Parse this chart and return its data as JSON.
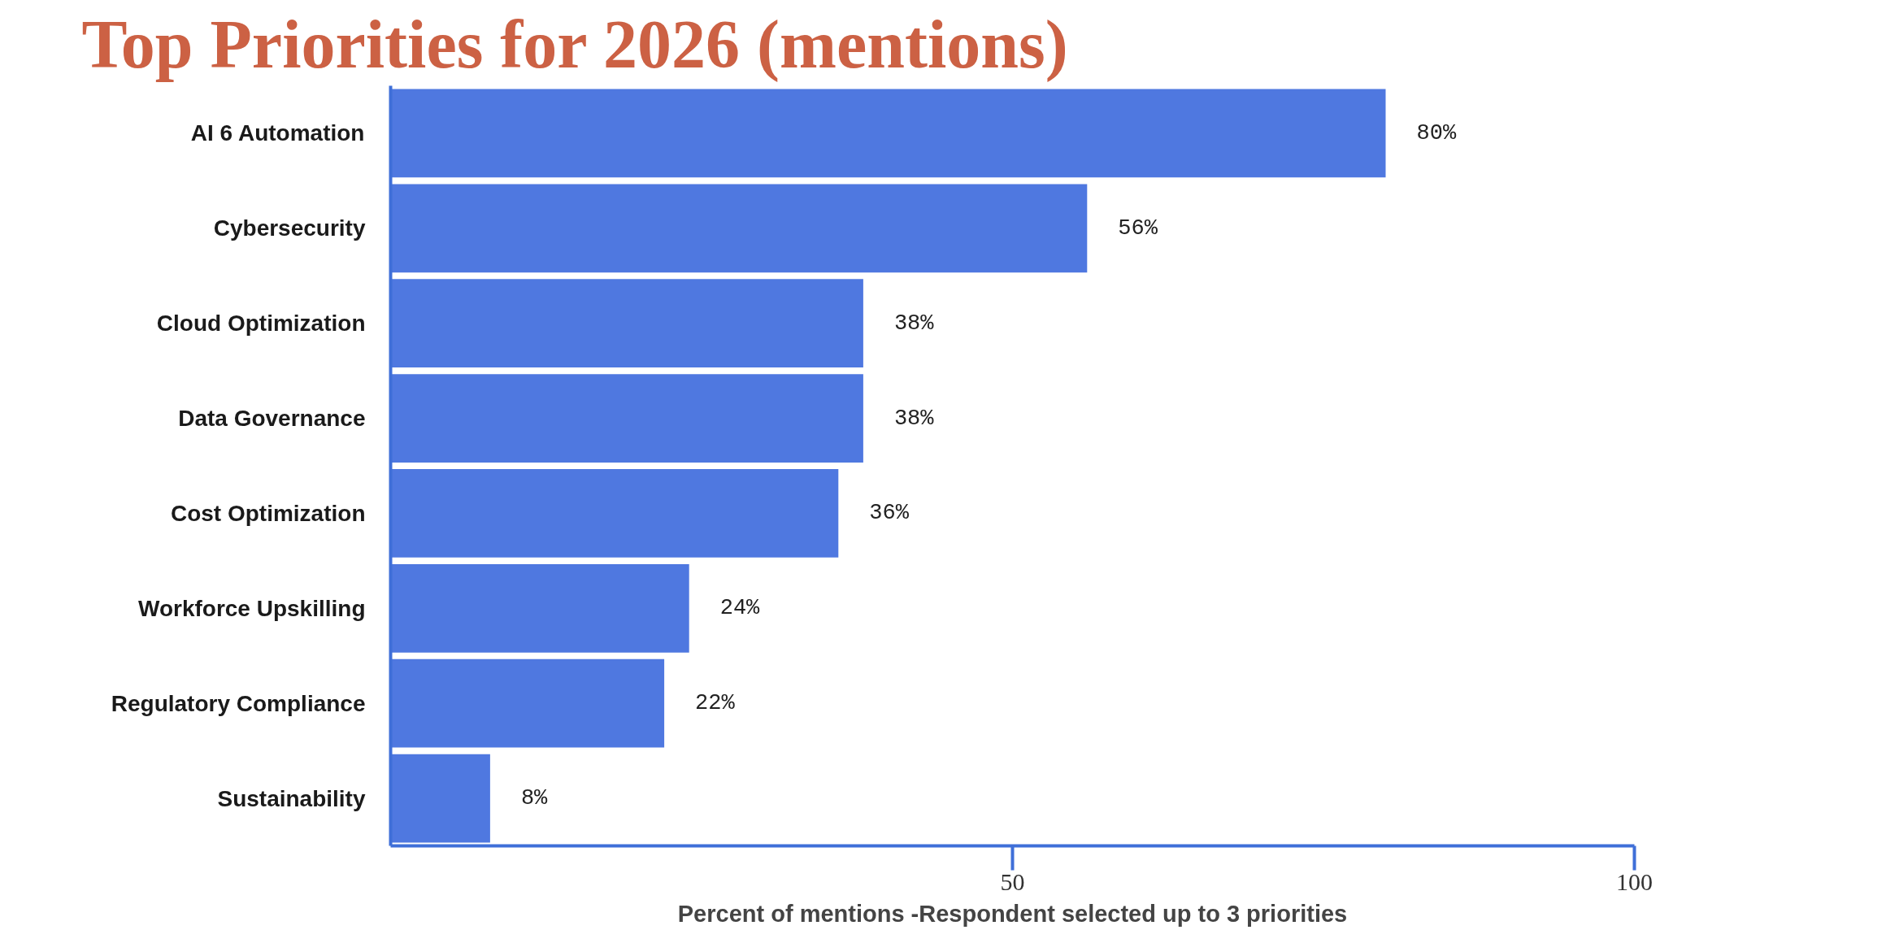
{
  "chart_data": {
    "type": "bar",
    "orientation": "horizontal",
    "title": "Top Priorities for 2026 (mentions)",
    "xlabel": "Percent of mentions -Respondent selected up to 3 priorities",
    "categories": [
      "AI 6 Automation",
      "Cybersecurity",
      "Cloud Optimization",
      "Data Governance",
      "Cost Optimization",
      "Workforce Upskilling",
      "Regulatory Compliance",
      "Sustainability"
    ],
    "values": [
      80,
      56,
      38,
      38,
      36,
      24,
      22,
      8
    ],
    "value_labels": [
      "80%",
      "56%",
      "38%",
      "38%",
      "36%",
      "24%",
      "22%",
      "8%"
    ],
    "color": "#4f78e0",
    "xlim": [
      0,
      100
    ],
    "xticks": [
      50,
      100
    ],
    "grid": false
  }
}
